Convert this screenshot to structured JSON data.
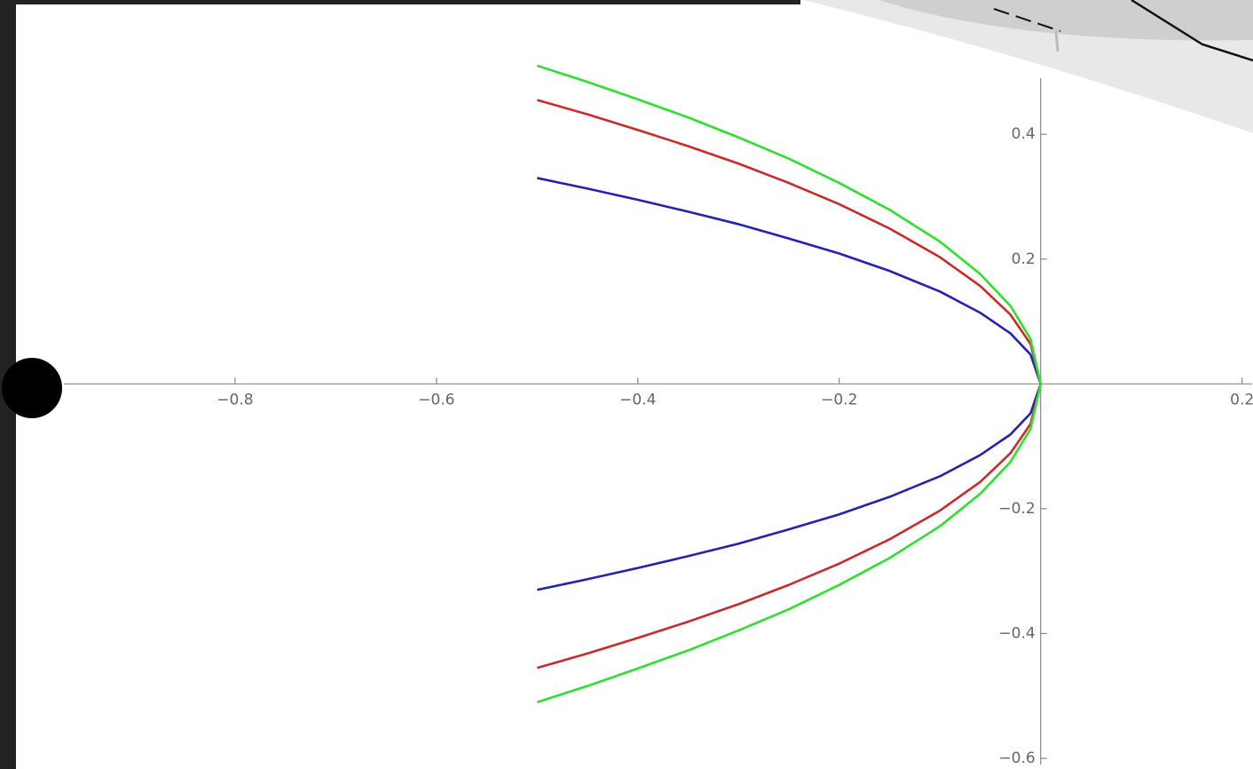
{
  "chart_data": {
    "type": "line",
    "x": [
      -0.5,
      -0.45,
      -0.4,
      -0.35,
      -0.3,
      -0.25,
      -0.2,
      -0.15,
      -0.1,
      -0.06,
      -0.03,
      -0.01,
      0
    ],
    "series": [
      {
        "color": "#2222b4",
        "values": [
          0.33,
          0.313,
          0.295,
          0.276,
          0.256,
          0.233,
          0.209,
          0.181,
          0.148,
          0.114,
          0.081,
          0.047,
          0
        ]
      },
      {
        "color": "#cc2a2a",
        "values": [
          0.455,
          0.432,
          0.407,
          0.381,
          0.353,
          0.322,
          0.288,
          0.249,
          0.203,
          0.157,
          0.111,
          0.064,
          0
        ]
      },
      {
        "color": "#2ee02e",
        "values": [
          0.51,
          0.484,
          0.456,
          0.427,
          0.395,
          0.361,
          0.322,
          0.279,
          0.228,
          0.176,
          0.125,
          0.072,
          0
        ]
      },
      {
        "color": "#2222b4",
        "values": [
          -0.33,
          -0.313,
          -0.295,
          -0.276,
          -0.256,
          -0.233,
          -0.209,
          -0.181,
          -0.148,
          -0.114,
          -0.081,
          -0.047,
          0
        ]
      },
      {
        "color": "#cc2a2a",
        "values": [
          -0.455,
          -0.432,
          -0.407,
          -0.381,
          -0.353,
          -0.322,
          -0.288,
          -0.249,
          -0.203,
          -0.157,
          -0.111,
          -0.064,
          0
        ]
      },
      {
        "color": "#2ee02e",
        "values": [
          -0.51,
          -0.484,
          -0.456,
          -0.427,
          -0.395,
          -0.361,
          -0.322,
          -0.279,
          -0.228,
          -0.176,
          -0.125,
          -0.072,
          0
        ]
      }
    ],
    "xlim": [
      -0.97,
      0.21
    ],
    "xticks": [
      {
        "value": -0.8,
        "label": "−0.8"
      },
      {
        "value": -0.6,
        "label": "−0.6"
      },
      {
        "value": -0.4,
        "label": "−0.4"
      },
      {
        "value": -0.2,
        "label": "−0.2"
      },
      0.2
    ],
    "ylim": [
      -0.61,
      0.49
    ],
    "yticks": [
      0.4,
      0.2,
      {
        "value": -0.2,
        "label": "−0.2"
      },
      {
        "value": -0.4,
        "label": "−0.4"
      },
      {
        "value": -0.6,
        "label": "−0.6"
      }
    ],
    "grid": false
  }
}
